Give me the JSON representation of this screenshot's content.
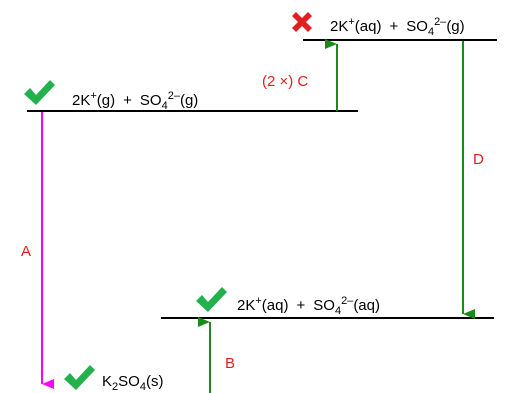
{
  "levels": {
    "gas_ions": {
      "cation": "2K",
      "cation_charge": "+",
      "cation_state": "(g)",
      "plus": "+",
      "anion_base": "SO",
      "anion_sub": "4",
      "anion_charge": "2–",
      "anion_state": "(g)",
      "mark": "check"
    },
    "mixed": {
      "cation": "2K",
      "cation_charge": "+",
      "cation_state": "(aq)",
      "plus": "+",
      "anion_base": "SO",
      "anion_sub": "4",
      "anion_charge": "2–",
      "anion_state": "(g)",
      "mark": "cross"
    },
    "aqueous": {
      "cation": "2K",
      "cation_charge": "+",
      "cation_state": "(aq)",
      "plus": "+",
      "anion_base": "SO",
      "anion_sub": "4",
      "anion_charge": "2–",
      "anion_state": "(aq)",
      "mark": "check"
    },
    "solid": {
      "base1": "K",
      "sub1": "2",
      "base2": "SO",
      "sub2": "4",
      "state": "(s)",
      "mark": "check"
    }
  },
  "arrows": {
    "A": {
      "label": "A",
      "color": "#ff00ff"
    },
    "B": {
      "label": "B",
      "color": "#1a8a1a"
    },
    "C": {
      "label": "(2 ×) C",
      "color": "#1a8a1a"
    },
    "D": {
      "label": "D",
      "color": "#1a8a1a"
    }
  },
  "colors": {
    "check": "#22b14c",
    "cross": "#e02020",
    "label": "#e02020",
    "line": "#000000"
  }
}
